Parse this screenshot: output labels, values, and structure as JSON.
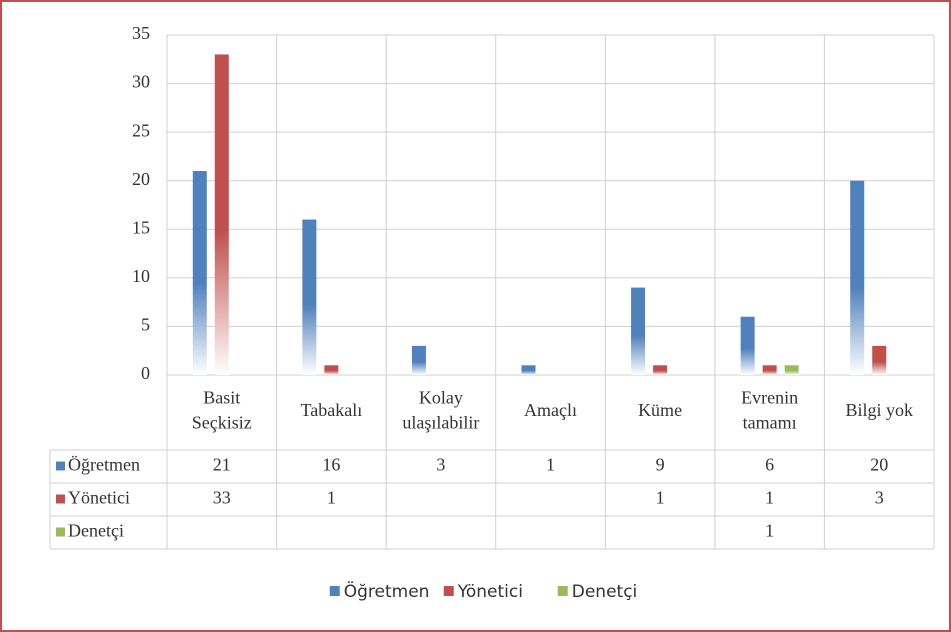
{
  "chart_data": {
    "type": "bar",
    "categories": [
      "Basit\nSeçkisiz",
      "Tabakalı",
      "Kolay\nulaşılabilir",
      "Amaçlı",
      "Küme",
      "Evrenin\ntamamı",
      "Bilgi yok"
    ],
    "series": [
      {
        "name": "Öğretmen",
        "color": "#4f81bd",
        "values": [
          21,
          16,
          3,
          1,
          9,
          6,
          20
        ]
      },
      {
        "name": "Yönetici",
        "color": "#c0504d",
        "values": [
          33,
          1,
          null,
          null,
          1,
          1,
          3
        ]
      },
      {
        "name": "Denetçi",
        "color": "#9bbb59",
        "values": [
          null,
          null,
          null,
          null,
          null,
          1,
          null
        ]
      }
    ],
    "ylim": [
      0,
      35
    ],
    "yticks": [
      0,
      5,
      10,
      15,
      20,
      25,
      30,
      35
    ],
    "grid": true,
    "legend": "bottom"
  }
}
